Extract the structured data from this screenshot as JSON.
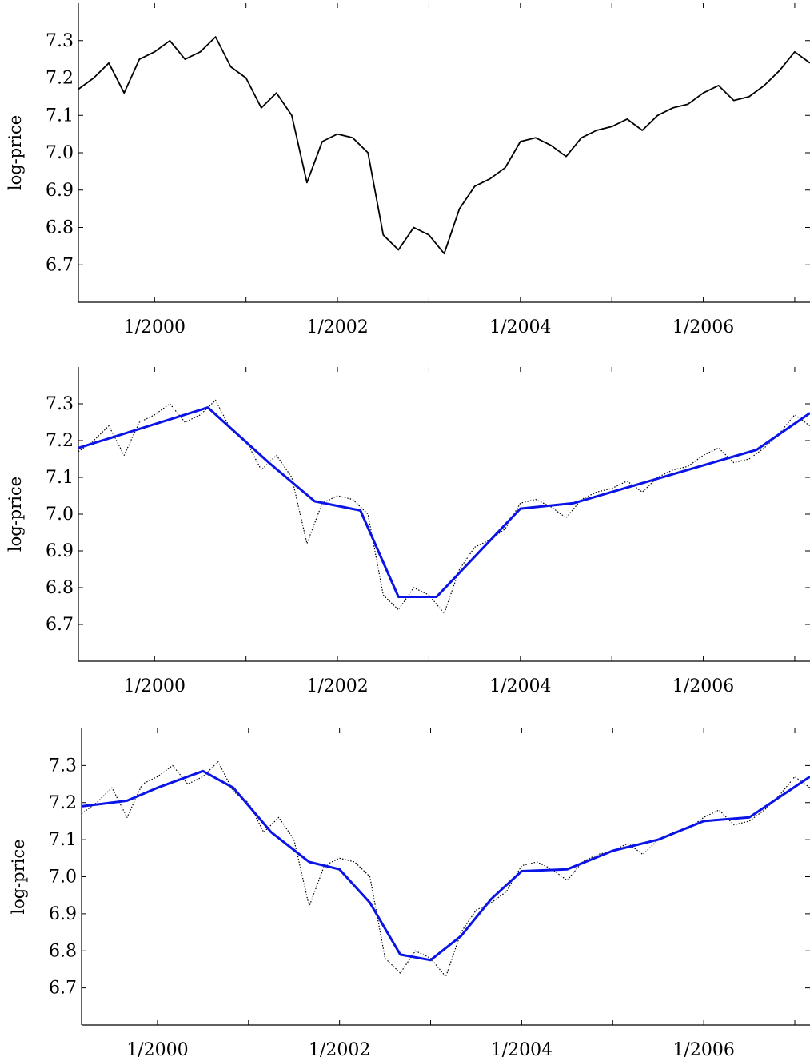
{
  "chart_data": [
    {
      "type": "line",
      "ylabel": "log-price",
      "xlabel": "",
      "title": "",
      "xlim": [
        "1999-03",
        "2007-03"
      ],
      "ylim": [
        6.6,
        7.4
      ],
      "yticks": [
        6.7,
        6.8,
        6.9,
        7.0,
        7.1,
        7.2,
        7.3
      ],
      "ytick_labels": [
        "6.7",
        "6.8",
        "6.9",
        "7.0",
        "7.1",
        "7.2",
        "7.3"
      ],
      "xticks": [
        "2000-01",
        "2002-01",
        "2004-01",
        "2006-01"
      ],
      "xtick_labels": [
        "1/2000",
        "1/2002",
        "1/2004",
        "1/2006"
      ],
      "grid": false,
      "series": [
        {
          "style": "solid",
          "color": "#000000",
          "x": [
            "1999-03",
            "1999-05",
            "1999-07",
            "1999-09",
            "1999-11",
            "2000-01",
            "2000-03",
            "2000-05",
            "2000-07",
            "2000-09",
            "2000-11",
            "2001-01",
            "2001-03",
            "2001-05",
            "2001-07",
            "2001-09",
            "2001-11",
            "2002-01",
            "2002-03",
            "2002-05",
            "2002-07",
            "2002-09",
            "2002-11",
            "2003-01",
            "2003-03",
            "2003-05",
            "2003-07",
            "2003-09",
            "2003-11",
            "2004-01",
            "2004-03",
            "2004-05",
            "2004-07",
            "2004-09",
            "2004-11",
            "2005-01",
            "2005-03",
            "2005-05",
            "2005-07",
            "2005-09",
            "2005-11",
            "2006-01",
            "2006-03",
            "2006-05",
            "2006-07",
            "2006-09",
            "2006-11",
            "2007-01",
            "2007-03"
          ],
          "values": [
            7.17,
            7.2,
            7.24,
            7.16,
            7.25,
            7.27,
            7.3,
            7.25,
            7.27,
            7.31,
            7.23,
            7.2,
            7.12,
            7.16,
            7.1,
            6.92,
            7.03,
            7.05,
            7.04,
            7.0,
            6.78,
            6.74,
            6.8,
            6.78,
            6.73,
            6.85,
            6.91,
            6.93,
            6.96,
            7.03,
            7.04,
            7.02,
            6.99,
            7.04,
            7.06,
            7.07,
            7.09,
            7.06,
            7.1,
            7.12,
            7.13,
            7.16,
            7.18,
            7.14,
            7.15,
            7.18,
            7.22,
            7.27,
            7.24
          ]
        }
      ]
    },
    {
      "type": "line",
      "ylabel": "log-price",
      "xlabel": "",
      "title": "",
      "xlim": [
        "1999-03",
        "2007-03"
      ],
      "ylim": [
        6.6,
        7.4
      ],
      "yticks": [
        6.7,
        6.8,
        6.9,
        7.0,
        7.1,
        7.2,
        7.3
      ],
      "ytick_labels": [
        "6.7",
        "6.8",
        "6.9",
        "7.0",
        "7.1",
        "7.2",
        "7.3"
      ],
      "xticks": [
        "2000-01",
        "2002-01",
        "2004-01",
        "2006-01"
      ],
      "xtick_labels": [
        "1/2000",
        "1/2002",
        "1/2004",
        "1/2006"
      ],
      "grid": false,
      "series": [
        {
          "style": "dotted",
          "color": "#000000",
          "x": [
            "1999-03",
            "1999-05",
            "1999-07",
            "1999-09",
            "1999-11",
            "2000-01",
            "2000-03",
            "2000-05",
            "2000-07",
            "2000-09",
            "2000-11",
            "2001-01",
            "2001-03",
            "2001-05",
            "2001-07",
            "2001-09",
            "2001-11",
            "2002-01",
            "2002-03",
            "2002-05",
            "2002-07",
            "2002-09",
            "2002-11",
            "2003-01",
            "2003-03",
            "2003-05",
            "2003-07",
            "2003-09",
            "2003-11",
            "2004-01",
            "2004-03",
            "2004-05",
            "2004-07",
            "2004-09",
            "2004-11",
            "2005-01",
            "2005-03",
            "2005-05",
            "2005-07",
            "2005-09",
            "2005-11",
            "2006-01",
            "2006-03",
            "2006-05",
            "2006-07",
            "2006-09",
            "2006-11",
            "2007-01",
            "2007-03"
          ],
          "values": [
            7.17,
            7.2,
            7.24,
            7.16,
            7.25,
            7.27,
            7.3,
            7.25,
            7.27,
            7.31,
            7.23,
            7.2,
            7.12,
            7.16,
            7.1,
            6.92,
            7.03,
            7.05,
            7.04,
            7.0,
            6.78,
            6.74,
            6.8,
            6.78,
            6.73,
            6.85,
            6.91,
            6.93,
            6.96,
            7.03,
            7.04,
            7.02,
            6.99,
            7.04,
            7.06,
            7.07,
            7.09,
            7.06,
            7.1,
            7.12,
            7.13,
            7.16,
            7.18,
            7.14,
            7.15,
            7.18,
            7.22,
            7.27,
            7.24
          ]
        },
        {
          "style": "solid",
          "color": "#0a14e6",
          "x": [
            "1999-03",
            "2000-08",
            "2001-04",
            "2001-10",
            "2002-04",
            "2002-09",
            "2003-02",
            "2004-01",
            "2004-08",
            "2006-08",
            "2007-03"
          ],
          "values": [
            7.18,
            7.29,
            7.14,
            7.035,
            7.01,
            6.775,
            6.775,
            7.015,
            7.03,
            7.175,
            7.275
          ]
        }
      ]
    },
    {
      "type": "line",
      "ylabel": "log-price",
      "xlabel": "",
      "title": "",
      "xlim": [
        "1999-03",
        "2007-03"
      ],
      "ylim": [
        6.6,
        7.4
      ],
      "yticks": [
        6.7,
        6.8,
        6.9,
        7.0,
        7.1,
        7.2,
        7.3
      ],
      "ytick_labels": [
        "6.7",
        "6.8",
        "6.9",
        "7.0",
        "7.1",
        "7.2",
        "7.3"
      ],
      "xticks": [
        "2000-01",
        "2002-01",
        "2004-01",
        "2006-01"
      ],
      "xtick_labels": [
        "1/2000",
        "1/2002",
        "1/2004",
        "1/2006"
      ],
      "grid": false,
      "series": [
        {
          "style": "dotted",
          "color": "#000000",
          "x": [
            "1999-03",
            "1999-05",
            "1999-07",
            "1999-09",
            "1999-11",
            "2000-01",
            "2000-03",
            "2000-05",
            "2000-07",
            "2000-09",
            "2000-11",
            "2001-01",
            "2001-03",
            "2001-05",
            "2001-07",
            "2001-09",
            "2001-11",
            "2002-01",
            "2002-03",
            "2002-05",
            "2002-07",
            "2002-09",
            "2002-11",
            "2003-01",
            "2003-03",
            "2003-05",
            "2003-07",
            "2003-09",
            "2003-11",
            "2004-01",
            "2004-03",
            "2004-05",
            "2004-07",
            "2004-09",
            "2004-11",
            "2005-01",
            "2005-03",
            "2005-05",
            "2005-07",
            "2005-09",
            "2005-11",
            "2006-01",
            "2006-03",
            "2006-05",
            "2006-07",
            "2006-09",
            "2006-11",
            "2007-01",
            "2007-03"
          ],
          "values": [
            7.17,
            7.2,
            7.24,
            7.16,
            7.25,
            7.27,
            7.3,
            7.25,
            7.27,
            7.31,
            7.23,
            7.2,
            7.12,
            7.16,
            7.1,
            6.92,
            7.03,
            7.05,
            7.04,
            7.0,
            6.78,
            6.74,
            6.8,
            6.78,
            6.73,
            6.85,
            6.91,
            6.93,
            6.96,
            7.03,
            7.04,
            7.02,
            6.99,
            7.04,
            7.06,
            7.07,
            7.09,
            7.06,
            7.1,
            7.12,
            7.13,
            7.16,
            7.18,
            7.14,
            7.15,
            7.18,
            7.22,
            7.27,
            7.24
          ]
        },
        {
          "style": "solid",
          "color": "#0a14e6",
          "x": [
            "1999-03",
            "1999-09",
            "2000-01",
            "2000-07",
            "2000-11",
            "2001-04",
            "2001-09",
            "2002-01",
            "2002-05",
            "2002-09",
            "2003-01",
            "2003-05",
            "2003-09",
            "2004-01",
            "2004-07",
            "2005-01",
            "2005-07",
            "2006-01",
            "2006-07",
            "2007-03"
          ],
          "values": [
            7.19,
            7.205,
            7.24,
            7.285,
            7.24,
            7.12,
            7.04,
            7.02,
            6.93,
            6.79,
            6.775,
            6.84,
            6.94,
            7.015,
            7.02,
            7.07,
            7.1,
            7.15,
            7.16,
            7.27
          ]
        }
      ]
    }
  ]
}
